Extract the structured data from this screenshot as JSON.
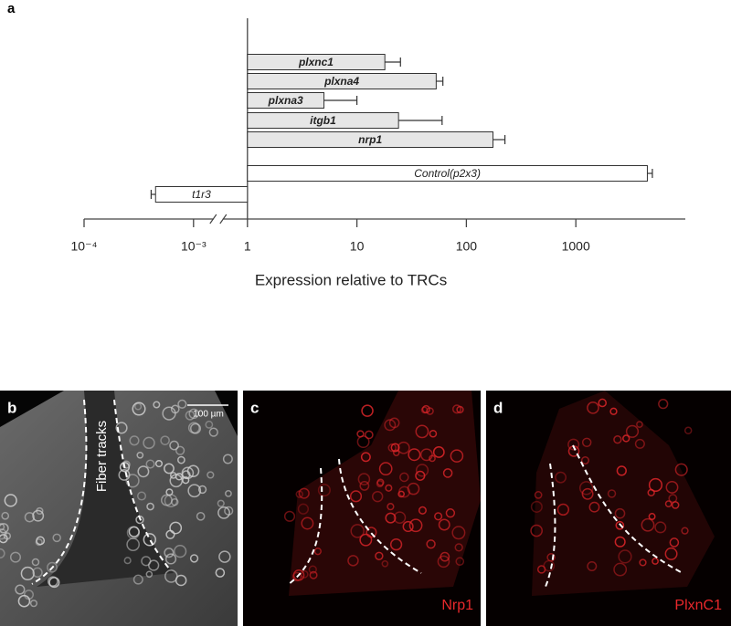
{
  "chart_data": {
    "type": "bar",
    "panel_label": "a",
    "x_label": "Expression relative to TRCs",
    "categories": [
      "plxnc1",
      "plxna4",
      "plxna3",
      "itgb1",
      "nrp1",
      "Control(p2x3)",
      "t1r3"
    ],
    "values": [
      18,
      53,
      5,
      24,
      175,
      4500,
      0.00045
    ],
    "errors": [
      7,
      8,
      5,
      36,
      50,
      500,
      4e-05
    ],
    "colors": [
      "#e6e6e6",
      "#e6e6e6",
      "#e6e6e6",
      "#e6e6e6",
      "#e6e6e6",
      "#ffffff",
      "#ffffff"
    ],
    "bold": [
      true,
      true,
      true,
      true,
      true,
      false,
      false
    ],
    "xscale": "log",
    "base": 1,
    "xlim": [
      0.0001,
      10000
    ],
    "x_break": [
      0.001,
      1
    ],
    "xticks": [
      {
        "value": 0.0001,
        "label": "10⁻⁴"
      },
      {
        "value": 0.001,
        "label": "10⁻³"
      },
      1,
      10,
      100,
      1000
    ]
  },
  "panels": [
    {
      "letter": "b",
      "scale_bar": "100 µm",
      "annotation": "Fiber tracks"
    },
    {
      "letter": "c",
      "stain": "Nrp1"
    },
    {
      "letter": "d",
      "stain": "PlxnC1"
    }
  ]
}
